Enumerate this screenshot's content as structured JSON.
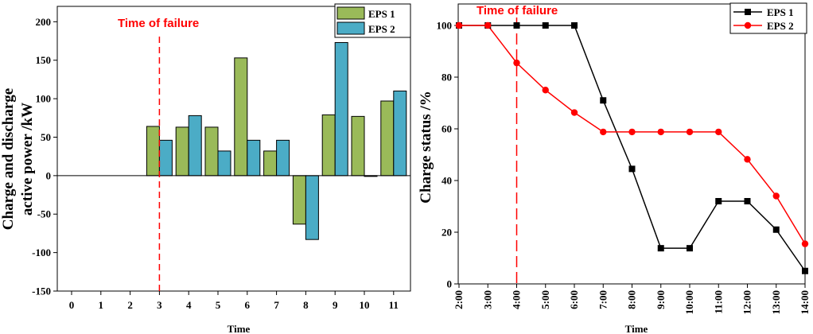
{
  "chart_data": [
    {
      "type": "bar",
      "title": "",
      "xlabel": "Time",
      "ylabel_line1": "Charge and discharge",
      "ylabel_line2": "active power /kW",
      "categories": [
        "0",
        "1",
        "2",
        "3",
        "4",
        "5",
        "6",
        "7",
        "8",
        "9",
        "10",
        "11"
      ],
      "ylim": [
        -150,
        220
      ],
      "yticks": [
        "-150",
        "-100",
        "-50",
        "0",
        "50",
        "100",
        "150",
        "200"
      ],
      "series": [
        {
          "name": "EPS 1",
          "color": "#9aba59",
          "values": [
            0,
            0,
            0,
            64,
            63,
            63,
            153,
            32,
            -63,
            79,
            77,
            97
          ]
        },
        {
          "name": "EPS 2",
          "color": "#4bacc6",
          "values": [
            0,
            0,
            0,
            46,
            78,
            32,
            46,
            46,
            -83,
            173,
            -1,
            110
          ]
        }
      ],
      "annotation": {
        "text": "Time of failure",
        "at_category": 3
      },
      "legend": "top-right"
    },
    {
      "type": "line",
      "title": "",
      "xlabel": "Time",
      "ylabel": "Charge status /%",
      "x": [
        "2:00",
        "3:00",
        "4:00",
        "5:00",
        "6:00",
        "7:00",
        "8:00",
        "9:00",
        "10:00",
        "11:00",
        "12:00",
        "13:00",
        "14:00"
      ],
      "ylim": [
        0,
        100
      ],
      "yticks": [
        "0",
        "20",
        "40",
        "60",
        "80",
        "100"
      ],
      "series": [
        {
          "name": "EPS 1",
          "color": "#000000",
          "marker": "square",
          "values": [
            100,
            100,
            100,
            100,
            100,
            71,
            44.5,
            13.8,
            13.8,
            32,
            32,
            21,
            5
          ]
        },
        {
          "name": "EPS 2",
          "color": "#ff0000",
          "marker": "circle",
          "values": [
            100,
            100,
            85.5,
            75,
            66.3,
            58.8,
            58.8,
            58.8,
            58.8,
            58.8,
            48.2,
            34,
            15.5
          ]
        }
      ],
      "annotation": {
        "text": "Time of failure",
        "at_x": "4:00"
      },
      "legend": "top-right"
    }
  ]
}
